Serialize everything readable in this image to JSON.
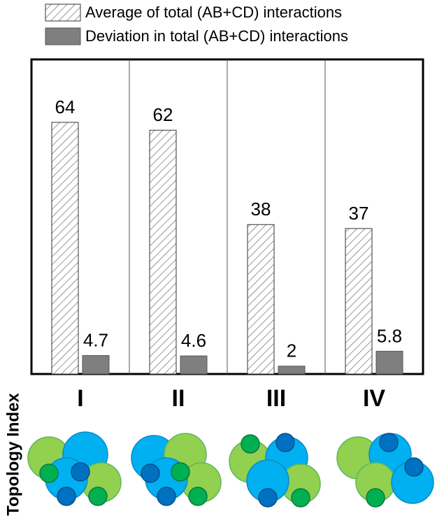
{
  "chart_data": {
    "type": "bar",
    "categories": [
      "I",
      "II",
      "III",
      "IV"
    ],
    "series": [
      {
        "name": "Average of total (AB+CD) interactions",
        "color": "#ffffff",
        "hatch": true,
        "values": [
          64,
          62,
          38,
          37
        ]
      },
      {
        "name": "Deviation in total (AB+CD) interactions",
        "color": "#7f7f7f",
        "hatch": false,
        "values": [
          4.7,
          4.6,
          2,
          5.8
        ]
      }
    ],
    "ylim": [
      0,
      80
    ],
    "y_label": "Topology Index"
  }
}
